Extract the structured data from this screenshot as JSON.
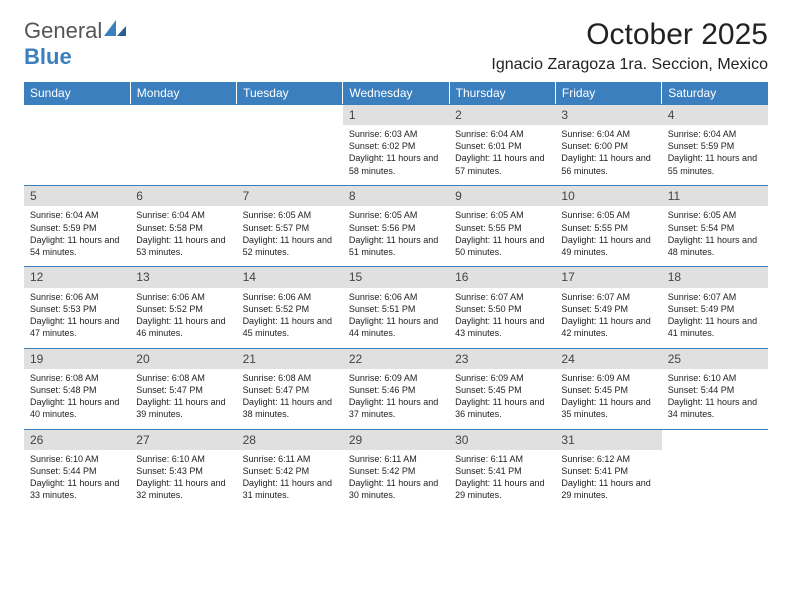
{
  "logo": {
    "general": "General",
    "blue": "Blue"
  },
  "title": "October 2025",
  "location": "Ignacio Zaragoza 1ra. Seccion, Mexico",
  "colors": {
    "header_bg": "#3b7fbf",
    "daynum_bg": "#e0e0e0",
    "text": "#222222",
    "background": "#ffffff"
  },
  "weekdays": [
    "Sunday",
    "Monday",
    "Tuesday",
    "Wednesday",
    "Thursday",
    "Friday",
    "Saturday"
  ],
  "days": [
    null,
    null,
    null,
    {
      "n": "1",
      "sr": "Sunrise: 6:03 AM",
      "ss": "Sunset: 6:02 PM",
      "dl": "Daylight: 11 hours and 58 minutes."
    },
    {
      "n": "2",
      "sr": "Sunrise: 6:04 AM",
      "ss": "Sunset: 6:01 PM",
      "dl": "Daylight: 11 hours and 57 minutes."
    },
    {
      "n": "3",
      "sr": "Sunrise: 6:04 AM",
      "ss": "Sunset: 6:00 PM",
      "dl": "Daylight: 11 hours and 56 minutes."
    },
    {
      "n": "4",
      "sr": "Sunrise: 6:04 AM",
      "ss": "Sunset: 5:59 PM",
      "dl": "Daylight: 11 hours and 55 minutes."
    },
    {
      "n": "5",
      "sr": "Sunrise: 6:04 AM",
      "ss": "Sunset: 5:59 PM",
      "dl": "Daylight: 11 hours and 54 minutes."
    },
    {
      "n": "6",
      "sr": "Sunrise: 6:04 AM",
      "ss": "Sunset: 5:58 PM",
      "dl": "Daylight: 11 hours and 53 minutes."
    },
    {
      "n": "7",
      "sr": "Sunrise: 6:05 AM",
      "ss": "Sunset: 5:57 PM",
      "dl": "Daylight: 11 hours and 52 minutes."
    },
    {
      "n": "8",
      "sr": "Sunrise: 6:05 AM",
      "ss": "Sunset: 5:56 PM",
      "dl": "Daylight: 11 hours and 51 minutes."
    },
    {
      "n": "9",
      "sr": "Sunrise: 6:05 AM",
      "ss": "Sunset: 5:55 PM",
      "dl": "Daylight: 11 hours and 50 minutes."
    },
    {
      "n": "10",
      "sr": "Sunrise: 6:05 AM",
      "ss": "Sunset: 5:55 PM",
      "dl": "Daylight: 11 hours and 49 minutes."
    },
    {
      "n": "11",
      "sr": "Sunrise: 6:05 AM",
      "ss": "Sunset: 5:54 PM",
      "dl": "Daylight: 11 hours and 48 minutes."
    },
    {
      "n": "12",
      "sr": "Sunrise: 6:06 AM",
      "ss": "Sunset: 5:53 PM",
      "dl": "Daylight: 11 hours and 47 minutes."
    },
    {
      "n": "13",
      "sr": "Sunrise: 6:06 AM",
      "ss": "Sunset: 5:52 PM",
      "dl": "Daylight: 11 hours and 46 minutes."
    },
    {
      "n": "14",
      "sr": "Sunrise: 6:06 AM",
      "ss": "Sunset: 5:52 PM",
      "dl": "Daylight: 11 hours and 45 minutes."
    },
    {
      "n": "15",
      "sr": "Sunrise: 6:06 AM",
      "ss": "Sunset: 5:51 PM",
      "dl": "Daylight: 11 hours and 44 minutes."
    },
    {
      "n": "16",
      "sr": "Sunrise: 6:07 AM",
      "ss": "Sunset: 5:50 PM",
      "dl": "Daylight: 11 hours and 43 minutes."
    },
    {
      "n": "17",
      "sr": "Sunrise: 6:07 AM",
      "ss": "Sunset: 5:49 PM",
      "dl": "Daylight: 11 hours and 42 minutes."
    },
    {
      "n": "18",
      "sr": "Sunrise: 6:07 AM",
      "ss": "Sunset: 5:49 PM",
      "dl": "Daylight: 11 hours and 41 minutes."
    },
    {
      "n": "19",
      "sr": "Sunrise: 6:08 AM",
      "ss": "Sunset: 5:48 PM",
      "dl": "Daylight: 11 hours and 40 minutes."
    },
    {
      "n": "20",
      "sr": "Sunrise: 6:08 AM",
      "ss": "Sunset: 5:47 PM",
      "dl": "Daylight: 11 hours and 39 minutes."
    },
    {
      "n": "21",
      "sr": "Sunrise: 6:08 AM",
      "ss": "Sunset: 5:47 PM",
      "dl": "Daylight: 11 hours and 38 minutes."
    },
    {
      "n": "22",
      "sr": "Sunrise: 6:09 AM",
      "ss": "Sunset: 5:46 PM",
      "dl": "Daylight: 11 hours and 37 minutes."
    },
    {
      "n": "23",
      "sr": "Sunrise: 6:09 AM",
      "ss": "Sunset: 5:45 PM",
      "dl": "Daylight: 11 hours and 36 minutes."
    },
    {
      "n": "24",
      "sr": "Sunrise: 6:09 AM",
      "ss": "Sunset: 5:45 PM",
      "dl": "Daylight: 11 hours and 35 minutes."
    },
    {
      "n": "25",
      "sr": "Sunrise: 6:10 AM",
      "ss": "Sunset: 5:44 PM",
      "dl": "Daylight: 11 hours and 34 minutes."
    },
    {
      "n": "26",
      "sr": "Sunrise: 6:10 AM",
      "ss": "Sunset: 5:44 PM",
      "dl": "Daylight: 11 hours and 33 minutes."
    },
    {
      "n": "27",
      "sr": "Sunrise: 6:10 AM",
      "ss": "Sunset: 5:43 PM",
      "dl": "Daylight: 11 hours and 32 minutes."
    },
    {
      "n": "28",
      "sr": "Sunrise: 6:11 AM",
      "ss": "Sunset: 5:42 PM",
      "dl": "Daylight: 11 hours and 31 minutes."
    },
    {
      "n": "29",
      "sr": "Sunrise: 6:11 AM",
      "ss": "Sunset: 5:42 PM",
      "dl": "Daylight: 11 hours and 30 minutes."
    },
    {
      "n": "30",
      "sr": "Sunrise: 6:11 AM",
      "ss": "Sunset: 5:41 PM",
      "dl": "Daylight: 11 hours and 29 minutes."
    },
    {
      "n": "31",
      "sr": "Sunrise: 6:12 AM",
      "ss": "Sunset: 5:41 PM",
      "dl": "Daylight: 11 hours and 29 minutes."
    },
    null,
    null,
    null
  ]
}
